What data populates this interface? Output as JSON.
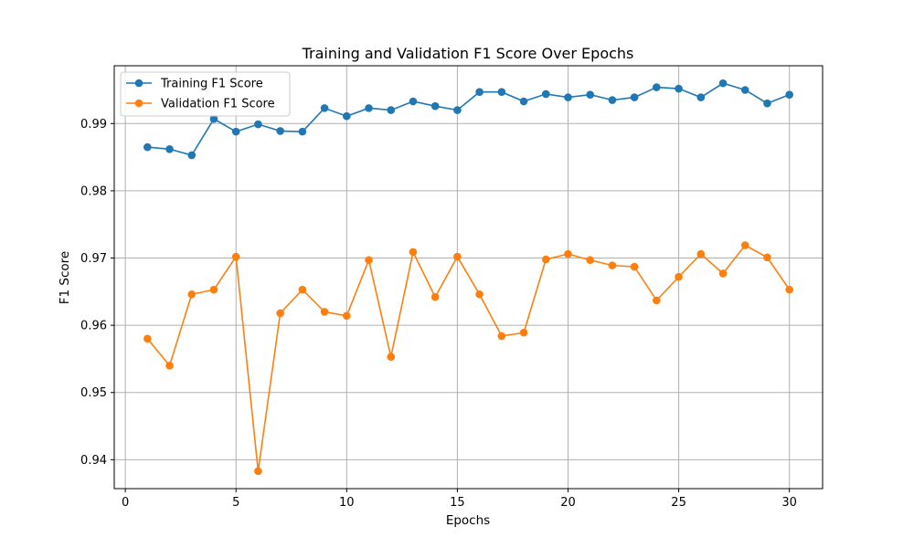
{
  "chart_data": {
    "type": "line",
    "title": "Training and Validation F1 Score Over Epochs",
    "xlabel": "Epochs",
    "ylabel": "F1 Score",
    "xlim": [
      -0.5,
      31.5
    ],
    "ylim": [
      0.9357,
      0.9986
    ],
    "xticks": [
      0,
      5,
      10,
      15,
      20,
      25,
      30
    ],
    "yticks": [
      0.94,
      0.95,
      0.96,
      0.97,
      0.98,
      0.99
    ],
    "grid": true,
    "legend_position": "top-left",
    "x": [
      1,
      2,
      3,
      4,
      5,
      6,
      7,
      8,
      9,
      10,
      11,
      12,
      13,
      14,
      15,
      16,
      17,
      18,
      19,
      20,
      21,
      22,
      23,
      24,
      25,
      26,
      27,
      28,
      29,
      30
    ],
    "series": [
      {
        "name": "Training F1 Score",
        "color": "#1f77b4",
        "marker": "circle",
        "values": [
          0.9865,
          0.9862,
          0.9853,
          0.9907,
          0.9888,
          0.9899,
          0.9889,
          0.9888,
          0.9923,
          0.9911,
          0.9923,
          0.992,
          0.9933,
          0.9926,
          0.992,
          0.9947,
          0.9947,
          0.9933,
          0.9944,
          0.9939,
          0.9943,
          0.9935,
          0.9939,
          0.9954,
          0.9952,
          0.9939,
          0.996,
          0.995,
          0.993,
          0.9943
        ]
      },
      {
        "name": "Validation F1 Score",
        "color": "#ff7f0e",
        "marker": "circle",
        "values": [
          0.958,
          0.954,
          0.9646,
          0.9653,
          0.9702,
          0.9383,
          0.9618,
          0.9653,
          0.962,
          0.9614,
          0.9697,
          0.9553,
          0.9709,
          0.9642,
          0.9702,
          0.9646,
          0.9584,
          0.9589,
          0.9698,
          0.9706,
          0.9697,
          0.9689,
          0.9687,
          0.9637,
          0.9672,
          0.9706,
          0.9677,
          0.9719,
          0.9701,
          0.9653
        ]
      }
    ]
  }
}
